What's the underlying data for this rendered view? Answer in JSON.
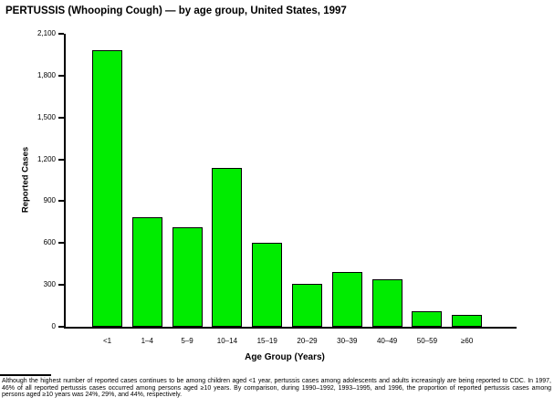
{
  "title": "PERTUSSIS (Whooping Cough) — by age group, United States, 1997",
  "chart_data": {
    "type": "bar",
    "title": "PERTUSSIS (Whooping Cough) — by age group, United States, 1997",
    "xlabel": "Age Group (Years)",
    "ylabel": "Reported Cases",
    "categories": [
      "<1",
      "1–4",
      "5–9",
      "10–14",
      "15–19",
      "20–29",
      "30–39",
      "40–49",
      "50–59",
      "≥60"
    ],
    "values": [
      1980,
      785,
      710,
      1140,
      600,
      305,
      390,
      340,
      110,
      85
    ],
    "ylim": [
      0,
      2100
    ],
    "yticks": [
      0,
      300,
      600,
      900,
      1200,
      1500,
      1800,
      2100
    ],
    "ytick_labels": [
      "0",
      "300",
      "600",
      "900",
      "1,200",
      "1,500",
      "1,800",
      "2,100"
    ],
    "grid": false,
    "legend": "none",
    "bar_color": "#00EC00",
    "bar_border_color": "#000000",
    "axis_color": "#000000"
  },
  "footnote": "Although the highest number of reported cases continues to be among children aged <1 year, pertussis cases among adolescents and adults increasingly are being reported to CDC. In 1997, 46% of all reported pertussis cases occurred among persons aged ≥10 years. By comparison, during 1990–1992, 1993–1995, and 1996, the proportion of reported pertussis cases among persons aged ≥10 years was 24%, 29%, and 44%, respectively."
}
